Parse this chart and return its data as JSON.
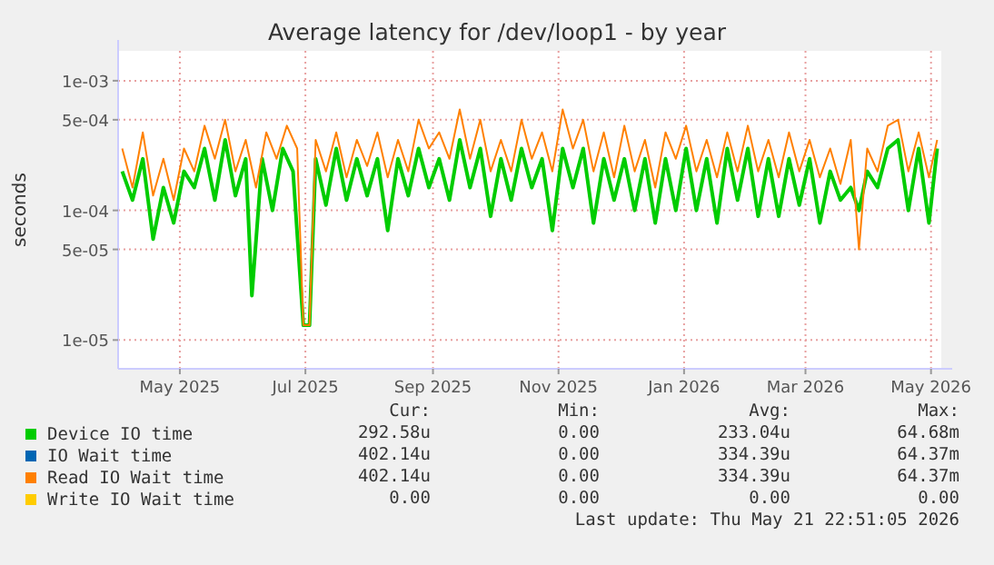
{
  "chart_data": {
    "type": "line",
    "title": "Average latency for /dev/loop1 - by year",
    "ylabel": "seconds",
    "log": "y",
    "grid": true,
    "legend": "bottom",
    "line_style": "solid",
    "xlim": [
      "2025-04-01",
      "2026-05-06"
    ],
    "xticks": [
      {
        "value": "2025-05-01",
        "label": "May 2025"
      },
      {
        "value": "2025-07-01",
        "label": "Jul 2025"
      },
      {
        "value": "2025-09-01",
        "label": "Sep 2025"
      },
      {
        "value": "2025-11-01",
        "label": "Nov 2025"
      },
      {
        "value": "2026-01-01",
        "label": "Jan 2026"
      },
      {
        "value": "2026-03-01",
        "label": "Mar 2026"
      },
      {
        "value": "2026-05-01",
        "label": "May 2026"
      }
    ],
    "ylim": [
      6e-06,
      0.0017
    ],
    "yticks": [
      {
        "value": 1e-05,
        "label": "1e-05"
      },
      {
        "value": 5e-05,
        "label": "5e-05"
      },
      {
        "value": 0.0001,
        "label": "1e-04"
      },
      {
        "value": 0.0005,
        "label": "5e-04"
      },
      {
        "value": 0.001,
        "label": "1e-03"
      }
    ],
    "series": [
      {
        "name": "Device IO time",
        "color": "#00cc00",
        "x": [
          "2025-04-03",
          "2025-04-08",
          "2025-04-13",
          "2025-04-18",
          "2025-04-23",
          "2025-04-28",
          "2025-05-03",
          "2025-05-08",
          "2025-05-13",
          "2025-05-18",
          "2025-05-23",
          "2025-05-28",
          "2025-06-02",
          "2025-06-05",
          "2025-06-10",
          "2025-06-15",
          "2025-06-20",
          "2025-06-25",
          "2025-06-30",
          "2025-07-03",
          "2025-07-06",
          "2025-07-11",
          "2025-07-16",
          "2025-07-21",
          "2025-07-26",
          "2025-07-31",
          "2025-08-05",
          "2025-08-10",
          "2025-08-15",
          "2025-08-20",
          "2025-08-25",
          "2025-08-30",
          "2025-09-04",
          "2025-09-09",
          "2025-09-14",
          "2025-09-19",
          "2025-09-24",
          "2025-09-29",
          "2025-10-04",
          "2025-10-09",
          "2025-10-14",
          "2025-10-19",
          "2025-10-24",
          "2025-10-29",
          "2025-11-03",
          "2025-11-08",
          "2025-11-13",
          "2025-11-18",
          "2025-11-23",
          "2025-11-28",
          "2025-12-03",
          "2025-12-08",
          "2025-12-13",
          "2025-12-18",
          "2025-12-23",
          "2025-12-28",
          "2026-01-02",
          "2026-01-07",
          "2026-01-12",
          "2026-01-17",
          "2026-01-22",
          "2026-01-27",
          "2026-02-01",
          "2026-02-06",
          "2026-02-11",
          "2026-02-16",
          "2026-02-21",
          "2026-02-26",
          "2026-03-03",
          "2026-03-08",
          "2026-03-13",
          "2026-03-18",
          "2026-03-23",
          "2026-03-27",
          "2026-03-31",
          "2026-04-05",
          "2026-04-10",
          "2026-04-15",
          "2026-04-20",
          "2026-04-25",
          "2026-04-30",
          "2026-05-04"
        ],
        "values": [
          0.0002,
          0.00012,
          0.00025,
          6e-05,
          0.00015,
          8e-05,
          0.0002,
          0.00015,
          0.0003,
          0.00012,
          0.00035,
          0.00013,
          0.00025,
          2.2e-05,
          0.00025,
          0.0001,
          0.0003,
          0.0002,
          1.3e-05,
          1.3e-05,
          0.00025,
          0.00011,
          0.0003,
          0.00012,
          0.00025,
          0.00013,
          0.00025,
          7e-05,
          0.00025,
          0.00013,
          0.0003,
          0.00015,
          0.00025,
          0.00012,
          0.00035,
          0.00015,
          0.0003,
          9e-05,
          0.00025,
          0.00012,
          0.0003,
          0.00015,
          0.00025,
          7e-05,
          0.0003,
          0.00015,
          0.0003,
          8e-05,
          0.00025,
          0.00012,
          0.00025,
          0.0001,
          0.00025,
          8e-05,
          0.00025,
          0.0001,
          0.0003,
          0.0001,
          0.00025,
          8e-05,
          0.0003,
          0.00012,
          0.0003,
          9e-05,
          0.00025,
          9e-05,
          0.00025,
          0.00011,
          0.00025,
          8e-05,
          0.0002,
          0.00012,
          0.00015,
          0.0001,
          0.0002,
          0.00015,
          0.0003,
          0.00035,
          0.0001,
          0.0003,
          8e-05,
          0.0003
        ]
      },
      {
        "name": "IO Wait time",
        "color": "#0066b3"
      },
      {
        "name": "Read IO Wait time",
        "color": "#ff8000",
        "x": [
          "2025-04-03",
          "2025-04-08",
          "2025-04-13",
          "2025-04-18",
          "2025-04-23",
          "2025-04-28",
          "2025-05-03",
          "2025-05-08",
          "2025-05-13",
          "2025-05-18",
          "2025-05-23",
          "2025-05-28",
          "2025-06-02",
          "2025-06-07",
          "2025-06-12",
          "2025-06-17",
          "2025-06-22",
          "2025-06-27",
          "2025-06-30",
          "2025-07-03",
          "2025-07-06",
          "2025-07-11",
          "2025-07-16",
          "2025-07-21",
          "2025-07-26",
          "2025-07-31",
          "2025-08-05",
          "2025-08-10",
          "2025-08-15",
          "2025-08-20",
          "2025-08-25",
          "2025-08-30",
          "2025-09-04",
          "2025-09-09",
          "2025-09-14",
          "2025-09-19",
          "2025-09-24",
          "2025-09-29",
          "2025-10-04",
          "2025-10-09",
          "2025-10-14",
          "2025-10-19",
          "2025-10-24",
          "2025-10-29",
          "2025-11-03",
          "2025-11-08",
          "2025-11-13",
          "2025-11-18",
          "2025-11-23",
          "2025-11-28",
          "2025-12-03",
          "2025-12-08",
          "2025-12-13",
          "2025-12-18",
          "2025-12-23",
          "2025-12-28",
          "2026-01-02",
          "2026-01-07",
          "2026-01-12",
          "2026-01-17",
          "2026-01-22",
          "2026-01-27",
          "2026-02-01",
          "2026-02-06",
          "2026-02-11",
          "2026-02-16",
          "2026-02-21",
          "2026-02-26",
          "2026-03-03",
          "2026-03-08",
          "2026-03-13",
          "2026-03-18",
          "2026-03-23",
          "2026-03-27",
          "2026-03-31",
          "2026-04-05",
          "2026-04-10",
          "2026-04-15",
          "2026-04-20",
          "2026-04-25",
          "2026-04-30",
          "2026-05-04"
        ],
        "values": [
          0.0003,
          0.00015,
          0.0004,
          0.00013,
          0.00025,
          0.00012,
          0.0003,
          0.0002,
          0.00045,
          0.00025,
          0.0005,
          0.0002,
          0.00035,
          0.00015,
          0.0004,
          0.00025,
          0.00045,
          0.0003,
          1.3e-05,
          1.3e-05,
          0.00035,
          0.0002,
          0.0004,
          0.00018,
          0.00035,
          0.00022,
          0.0004,
          0.00018,
          0.00035,
          0.0002,
          0.0005,
          0.0003,
          0.0004,
          0.00025,
          0.0006,
          0.00025,
          0.0005,
          0.0002,
          0.00035,
          0.0002,
          0.0005,
          0.00025,
          0.0004,
          0.0002,
          0.0006,
          0.0003,
          0.0005,
          0.0002,
          0.0004,
          0.00018,
          0.00045,
          0.0002,
          0.00035,
          0.00015,
          0.0004,
          0.00025,
          0.00045,
          0.0002,
          0.00035,
          0.00018,
          0.0004,
          0.0002,
          0.00045,
          0.0002,
          0.00035,
          0.00018,
          0.0004,
          0.0002,
          0.00035,
          0.00018,
          0.0003,
          0.00016,
          0.00035,
          5e-05,
          0.0003,
          0.0002,
          0.00045,
          0.0005,
          0.0002,
          0.0004,
          0.00018,
          0.00035
        ]
      },
      {
        "name": "Write IO Wait time",
        "color": "#ffcc00"
      }
    ],
    "annotations": [
      "Cur:",
      "Min:",
      "Avg:",
      "Max:",
      "292.58u",
      "0.00",
      "233.04u",
      "64.68m",
      "402.14u",
      "0.00",
      "334.39u",
      "64.37m",
      "402.14u",
      "0.00",
      "334.39u",
      "64.37m",
      "0.00",
      "0.00",
      "0.00",
      "0.00",
      "Last update: Thu May 21 22:51:05 2026"
    ]
  }
}
